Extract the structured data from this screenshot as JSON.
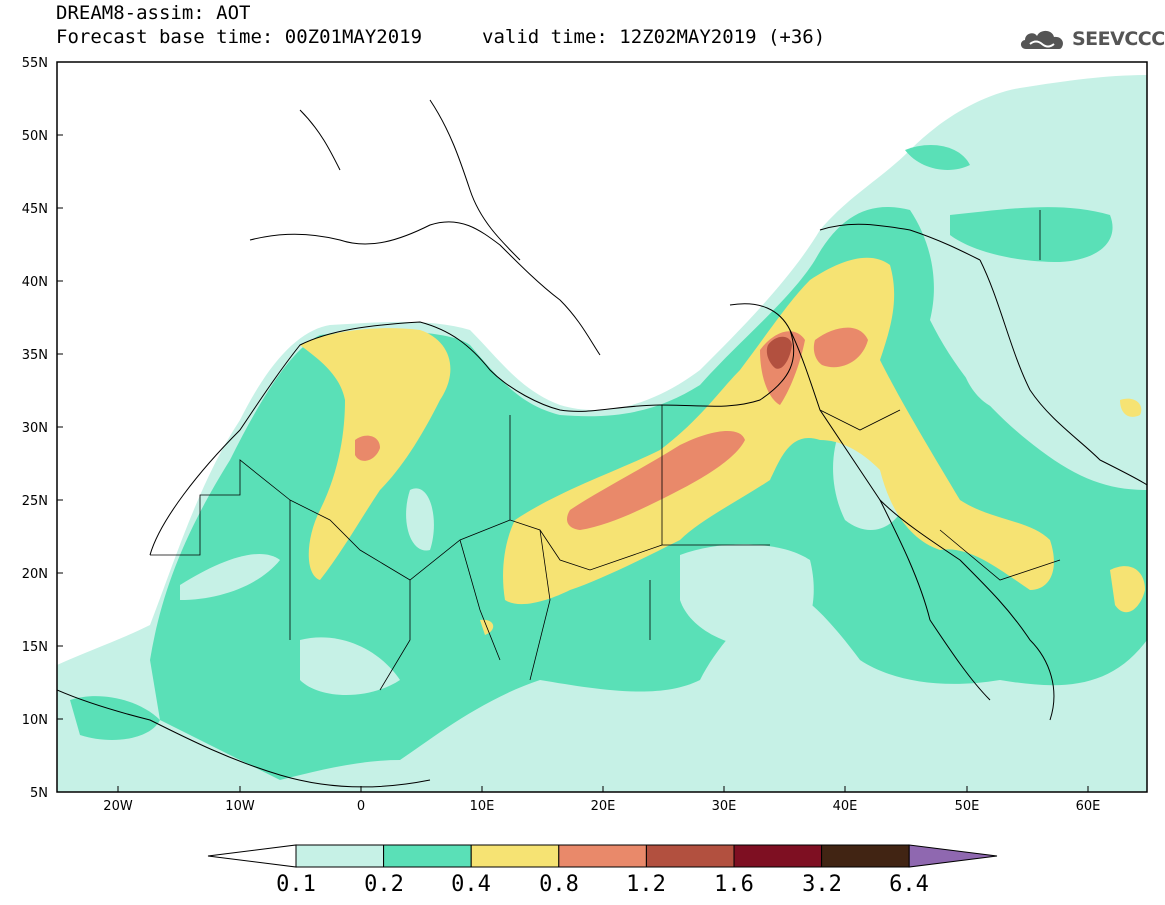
{
  "header": {
    "title": "DREAM8-assim: AOT",
    "base_time": "Forecast base time: 00Z01MAY2019",
    "valid_time": "valid time: 12Z02MAY2019 (+36)",
    "logo_text": "SEEVCCC"
  },
  "axes": {
    "lon_labels": [
      "20W",
      "10W",
      "0",
      "10E",
      "20E",
      "30E",
      "40E",
      "50E",
      "60E"
    ],
    "lat_labels": [
      "55N",
      "50N",
      "45N",
      "40N",
      "35N",
      "30N",
      "25N",
      "20N",
      "15N",
      "10N",
      "5N"
    ]
  },
  "colorbar": {
    "labels": [
      "0.1",
      "0.2",
      "0.4",
      "0.8",
      "1.2",
      "1.6",
      "3.2",
      "6.4"
    ],
    "colors": [
      "#ffffff",
      "#c6f1e6",
      "#5ae0b7",
      "#f6e373",
      "#e9896a",
      "#b2503f",
      "#7e0f22",
      "#412413",
      "#8f68b0"
    ]
  }
}
